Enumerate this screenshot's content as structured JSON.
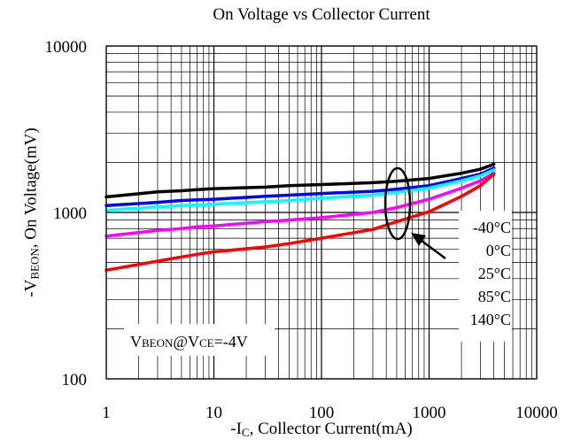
{
  "chart_data": {
    "type": "line",
    "title": "On Voltage vs Collector Current",
    "xlabel": {
      "prefix": "-I",
      "sub": "C",
      "suffix": ", Collector Current(mA)"
    },
    "ylabel": {
      "prefix": "-V",
      "sub": "BEON",
      "suffix": ", On Voltage(mV)"
    },
    "x_scale": "log",
    "y_scale": "log",
    "xlim": [
      1,
      10000
    ],
    "ylim": [
      100,
      10000
    ],
    "x_ticks": [
      "1",
      "10",
      "100",
      "1000",
      "10000"
    ],
    "y_ticks": [
      "100",
      "1000",
      "10000"
    ],
    "grid": true,
    "annotation": {
      "p1": "V",
      "s1": "BEON",
      "p2": "@V",
      "s2": "CE",
      "p3": "=-4V"
    },
    "series": [
      {
        "name": "-40°C",
        "color": "#000000",
        "x": [
          1,
          3,
          5,
          7,
          10,
          30,
          50,
          100,
          300,
          500,
          1000,
          2000,
          3000,
          4000
        ],
        "y": [
          1240,
          1330,
          1350,
          1370,
          1390,
          1420,
          1450,
          1470,
          1510,
          1540,
          1600,
          1720,
          1820,
          1950
        ]
      },
      {
        "name": "0°C",
        "color": "#0000ff",
        "x": [
          1,
          3,
          5,
          7,
          10,
          30,
          50,
          100,
          300,
          500,
          1000,
          2000,
          3000,
          4000
        ],
        "y": [
          1100,
          1150,
          1180,
          1190,
          1200,
          1250,
          1270,
          1300,
          1340,
          1380,
          1450,
          1600,
          1700,
          1850
        ]
      },
      {
        "name": "25°C",
        "color": "#00ffff",
        "x": [
          1,
          3,
          5,
          7,
          10,
          30,
          50,
          100,
          300,
          500,
          1000,
          2000,
          3000,
          4000
        ],
        "y": [
          1030,
          1080,
          1100,
          1110,
          1120,
          1160,
          1180,
          1220,
          1270,
          1320,
          1400,
          1550,
          1660,
          1800
        ]
      },
      {
        "name": "85°C",
        "color": "#ff00ff",
        "x": [
          1,
          3,
          5,
          7,
          10,
          30,
          50,
          100,
          300,
          500,
          1000,
          2000,
          3000,
          4000
        ],
        "y": [
          720,
          780,
          800,
          820,
          830,
          880,
          900,
          930,
          1000,
          1070,
          1200,
          1400,
          1550,
          1720
        ]
      },
      {
        "name": "140°C",
        "color": "#ff0000",
        "x": [
          1,
          3,
          5,
          7,
          10,
          30,
          50,
          100,
          300,
          500,
          1000,
          2000,
          3000,
          4000
        ],
        "y": [
          450,
          510,
          540,
          560,
          580,
          620,
          650,
          700,
          790,
          880,
          1010,
          1250,
          1450,
          1700
        ]
      }
    ]
  }
}
